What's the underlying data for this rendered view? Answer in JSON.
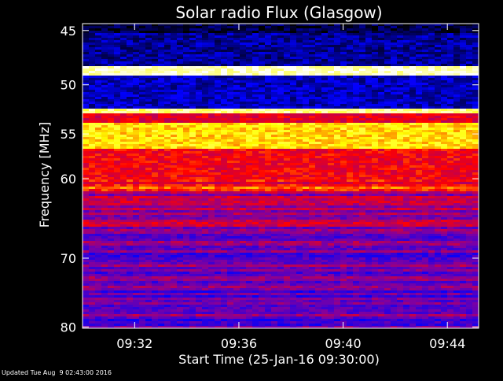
{
  "chart_data": {
    "type": "heatmap",
    "title": "Solar radio Flux (Glasgow)",
    "xlabel": "Start Time (25-Jan-16 09:30:00)",
    "ylabel": "Frequency [MHz]",
    "x_tick_labels": [
      "09:32",
      "09:36",
      "09:40",
      "09:44"
    ],
    "x_tick_minutes": [
      2,
      6,
      10,
      14
    ],
    "xlim_minutes": [
      0,
      15.2
    ],
    "y_ticks": [
      45,
      50,
      55,
      60,
      70,
      80
    ],
    "y_tick_labels": [
      "45",
      "50",
      "55",
      "60",
      "70",
      "80"
    ],
    "ylim": [
      44.4,
      80.2
    ],
    "y_scale": "inverted-log",
    "grid": false,
    "bands": [
      {
        "from": 44.4,
        "to": 45.3,
        "level": 0.05
      },
      {
        "from": 45.3,
        "to": 48.3,
        "level": 0.12
      },
      {
        "from": 48.3,
        "to": 49.1,
        "level": 0.95
      },
      {
        "from": 49.1,
        "to": 52.4,
        "level": 0.15
      },
      {
        "from": 52.4,
        "to": 52.9,
        "level": 0.9
      },
      {
        "from": 52.9,
        "to": 53.8,
        "level": 0.55
      },
      {
        "from": 53.8,
        "to": 56.5,
        "level": 0.78
      },
      {
        "from": 56.5,
        "to": 61.5,
        "level": 0.58
      },
      {
        "from": 61.5,
        "to": 66.5,
        "level": 0.45
      },
      {
        "from": 66.5,
        "to": 80.2,
        "level": 0.36
      }
    ],
    "colormap": [
      "#000000",
      "#0000ff",
      "#8000a0",
      "#ff0000",
      "#ffff00",
      "#ffffff"
    ]
  },
  "footer": {
    "updated": "Updated Tue Aug  9 02:43:00 2016"
  }
}
